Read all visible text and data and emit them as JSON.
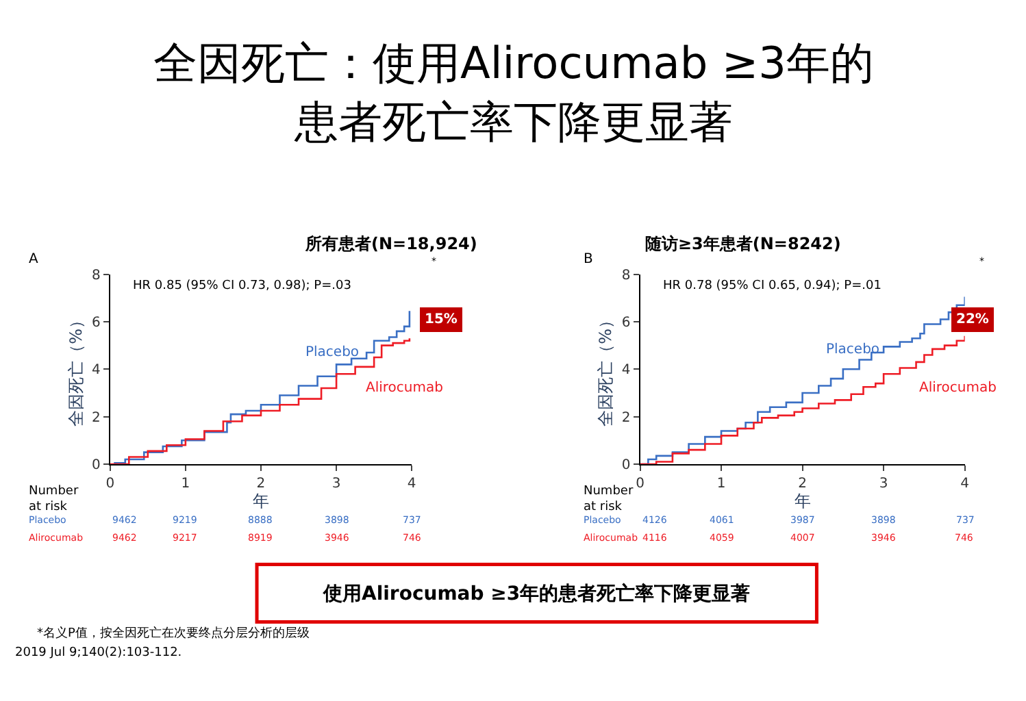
{
  "chart_data": [
    {
      "type": "step",
      "title": "所有患者(N=18,924)",
      "xlabel": "年",
      "ylabel": "全因死亡（%）",
      "xlim": [
        0,
        4
      ],
      "ylim": [
        0,
        8
      ],
      "xticks": [
        0,
        1,
        2,
        3,
        4
      ],
      "yticks": [
        0,
        2,
        4,
        6,
        8
      ],
      "marker": "none",
      "series": [
        {
          "name": "Placebo",
          "color": "#3a6fc4",
          "x": [
            0.05,
            0.2,
            0.45,
            0.7,
            0.95,
            1.25,
            1.55,
            1.6,
            1.8,
            2,
            2.25,
            2.5,
            2.75,
            3,
            3.2,
            3.4,
            3.5,
            3.7,
            3.8,
            3.9,
            3.97
          ],
          "values": [
            0.05,
            0.2,
            0.5,
            0.75,
            1.0,
            1.35,
            1.75,
            2.1,
            2.25,
            2.5,
            2.9,
            3.3,
            3.7,
            4.2,
            4.45,
            4.7,
            5.2,
            5.35,
            5.6,
            5.8,
            6.45
          ]
        },
        {
          "name": "Alirocumab",
          "color": "#ee1c25",
          "x": [
            0,
            0.25,
            0.5,
            0.75,
            1,
            1.25,
            1.5,
            1.75,
            2,
            2.25,
            2.5,
            2.8,
            3,
            3.25,
            3.5,
            3.6,
            3.75,
            3.9,
            3.97
          ],
          "values": [
            0,
            0.3,
            0.55,
            0.8,
            1.05,
            1.4,
            1.8,
            2.05,
            2.25,
            2.5,
            2.75,
            3.2,
            3.8,
            4.1,
            4.5,
            5.0,
            5.1,
            5.2,
            5.3
          ]
        }
      ],
      "annotations": [
        "A",
        "HR 0.85 (95% CI 0.73, 0.98); P=.03",
        "Number\nat risk",
        "Placebo 9462 9219 8888 3898 737",
        "Alirocumab 9462 9217 8919 3946 746",
        "*",
        "15%",
        "全因死亡：使用Alirocumab ≥3年的",
        "患者死亡率下降更显著",
        "使用Alirocumab ≥3年的患者死亡率下降更显著",
        "*名义P值，按全因死亡在次要终点分层分析的层级",
        "2019 Jul 9;140(2):103-112."
      ]
    },
    {
      "type": "step",
      "title": "随访≥3年患者(N=8242)",
      "xlabel": "年",
      "ylabel": "全因死亡（%）",
      "xlim": [
        0,
        4
      ],
      "ylim": [
        0,
        8
      ],
      "xticks": [
        0,
        1,
        2,
        3,
        4
      ],
      "yticks": [
        0,
        2,
        4,
        6,
        8
      ],
      "marker": "none",
      "series": [
        {
          "name": "Placebo",
          "color": "#3a6fc4",
          "x": [
            0,
            0.1,
            0.2,
            0.4,
            0.6,
            0.8,
            1,
            1.2,
            1.3,
            1.45,
            1.6,
            1.8,
            2,
            2.2,
            2.35,
            2.5,
            2.7,
            2.85,
            3,
            3.2,
            3.35,
            3.45,
            3.5,
            3.7,
            3.8,
            3.9,
            4
          ],
          "values": [
            0,
            0.2,
            0.35,
            0.5,
            0.85,
            1.15,
            1.4,
            1.5,
            1.75,
            2.2,
            2.4,
            2.6,
            3.0,
            3.3,
            3.6,
            4.0,
            4.4,
            4.7,
            4.95,
            5.15,
            5.3,
            5.5,
            5.9,
            6.1,
            6.4,
            6.7,
            7.05
          ]
        },
        {
          "name": "Alirocumab",
          "color": "#ee1c25",
          "x": [
            0,
            0.2,
            0.4,
            0.6,
            0.8,
            1,
            1.2,
            1.4,
            1.5,
            1.7,
            1.9,
            2,
            2.2,
            2.4,
            2.6,
            2.75,
            2.9,
            3,
            3.2,
            3.4,
            3.5,
            3.6,
            3.75,
            3.9,
            4
          ],
          "values": [
            0,
            0.1,
            0.45,
            0.6,
            0.85,
            1.2,
            1.5,
            1.75,
            1.95,
            2.05,
            2.2,
            2.35,
            2.55,
            2.7,
            2.95,
            3.25,
            3.4,
            3.8,
            4.05,
            4.3,
            4.6,
            4.85,
            5.0,
            5.2,
            5.4
          ]
        }
      ],
      "annotations": [
        "B",
        "HR 0.78 (95% CI 0.65, 0.94); P=.01",
        "Number\nat risk",
        "Placebo 4126 4061 3987 3898 737",
        "Alirocumab 4116 4059 4007 3946 746",
        "*",
        "22%"
      ]
    }
  ]
}
